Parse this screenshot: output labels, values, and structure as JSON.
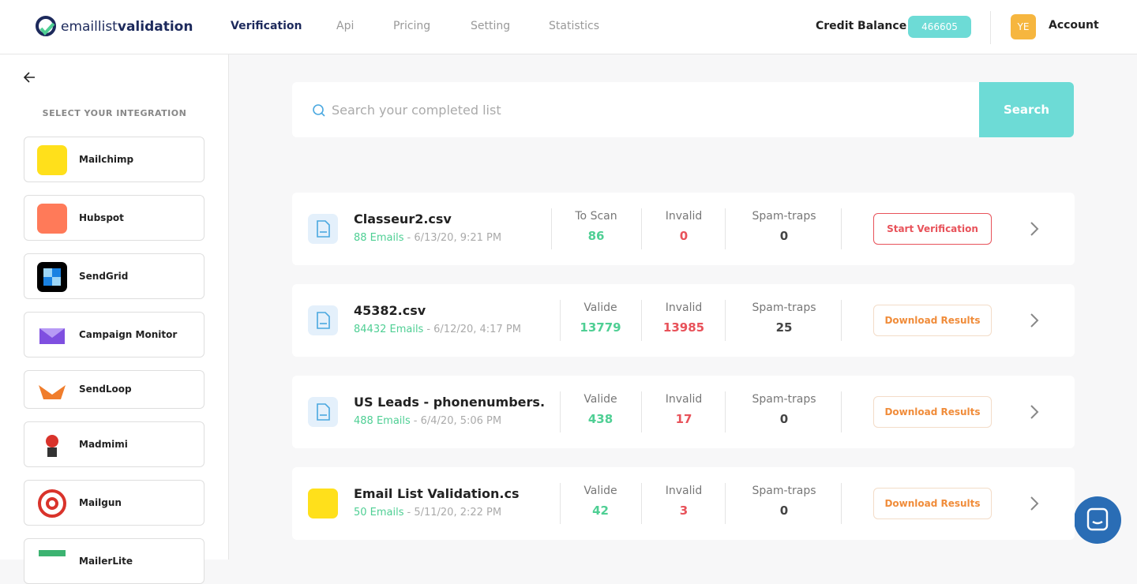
{
  "header": {
    "logo_light": "emaillist",
    "logo_bold": "validation",
    "nav": [
      "Verification",
      "Api",
      "Pricing",
      "Setting",
      "Statistics"
    ],
    "credit_label": "Credit Balance",
    "credit_value": 466605,
    "avatar": "YE",
    "account": "Account"
  },
  "sidebar": {
    "title": "SELECT YOUR INTEGRATION",
    "integrations": [
      "Mailchimp",
      "Hubspot",
      "SendGrid",
      "Campaign Monitor",
      "SendLoop",
      "Madmimi",
      "Mailgun",
      "MailerLite"
    ]
  },
  "search": {
    "placeholder": "Search your completed list",
    "button": "Search"
  },
  "lists": [
    {
      "name": "Classeur2.csv",
      "emails": "88 Emails",
      "date": "- 6/13/20, 9:21 PM",
      "stats": [
        {
          "label": "To Scan",
          "value": 86
        },
        {
          "label": "Invalid",
          "value": 0
        },
        {
          "label": "Spam-traps",
          "value": 0
        }
      ],
      "action": "Start Verification"
    },
    {
      "name": "45382.csv",
      "emails": "84432 Emails",
      "date": "- 6/12/20, 4:17 PM",
      "stats": [
        {
          "label": "Valide",
          "value": 13779
        },
        {
          "label": "Invalid",
          "value": 13985
        },
        {
          "label": "Spam-traps",
          "value": 25
        }
      ],
      "action": "Download Results"
    },
    {
      "name": "US Leads - phonenumbers.",
      "emails": "488 Emails",
      "date": "- 6/4/20, 5:06 PM",
      "stats": [
        {
          "label": "Valide",
          "value": 438
        },
        {
          "label": "Invalid",
          "value": 17
        },
        {
          "label": "Spam-traps",
          "value": 0
        }
      ],
      "action": "Download Results"
    },
    {
      "name": "Email List Validation.cs",
      "emails": "50 Emails",
      "date": "- 5/11/20, 2:22 PM",
      "stats": [
        {
          "label": "Valide",
          "value": 42
        },
        {
          "label": "Invalid",
          "value": 3
        },
        {
          "label": "Spam-traps",
          "value": 0
        }
      ],
      "action": "Download Results"
    }
  ]
}
